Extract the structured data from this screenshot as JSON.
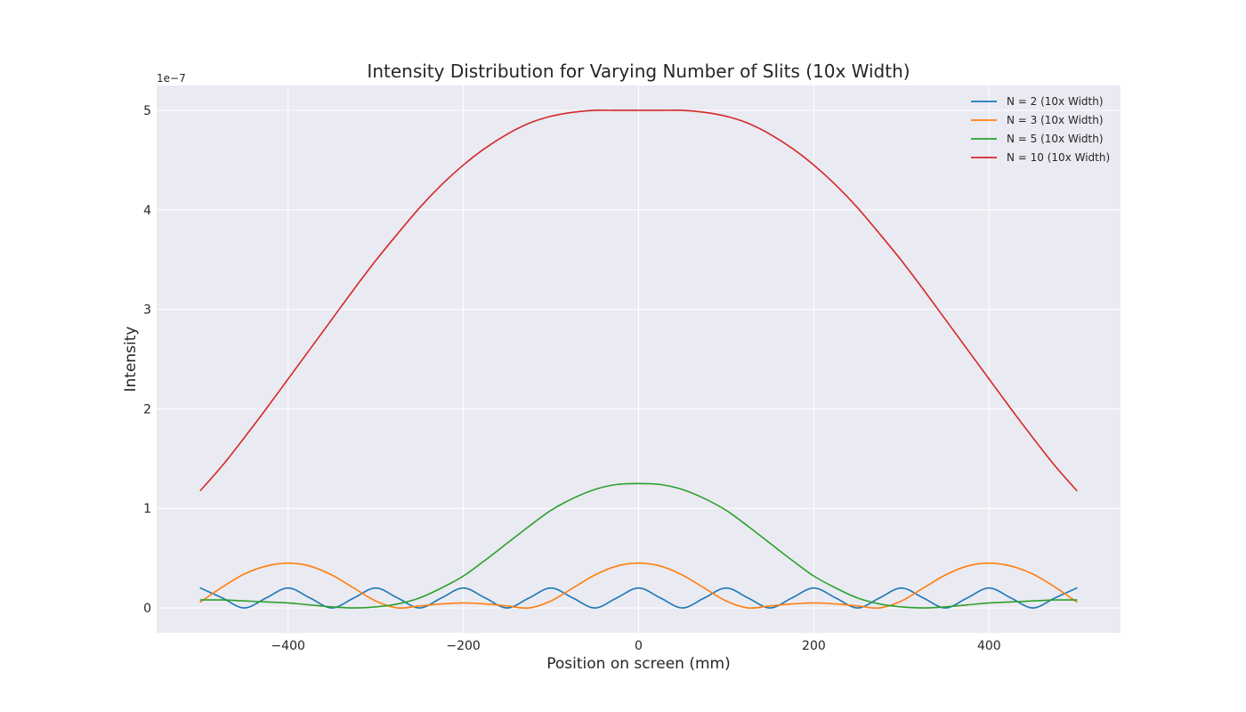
{
  "chart_data": {
    "type": "line",
    "title": "Intensity Distribution for Varying Number of Slits (10x Width)",
    "xlabel": "Position on screen (mm)",
    "ylabel": "Intensity",
    "y_offset_label": "1e−7",
    "xlim": [
      -550,
      550
    ],
    "ylim": [
      -0.25,
      5.25
    ],
    "x_ticks": [
      -400,
      -200,
      0,
      200,
      400
    ],
    "x_tick_labels": [
      "−400",
      "−200",
      "0",
      "200",
      "400"
    ],
    "y_ticks": [
      0,
      1,
      2,
      3,
      4,
      5
    ],
    "y_tick_labels": [
      "0",
      "1",
      "2",
      "3",
      "4",
      "5"
    ],
    "grid": true,
    "legend_position": "top-right",
    "x_range": [
      -500,
      500
    ],
    "series": [
      {
        "name": "N = 2 (10x Width)",
        "color": "#1f77b4",
        "x": [
          -500,
          -475,
          -450,
          -425,
          -400,
          -375,
          -350,
          -325,
          -300,
          -275,
          -250,
          -225,
          -200,
          -175,
          -150,
          -125,
          -100,
          -75,
          -50,
          -25,
          0,
          25,
          50,
          75,
          100,
          125,
          150,
          175,
          200,
          225,
          250,
          275,
          300,
          325,
          350,
          375,
          400,
          425,
          450,
          475,
          500
        ],
        "y": [
          0.2,
          0.1,
          0.0,
          0.1,
          0.2,
          0.1,
          0.0,
          0.1,
          0.2,
          0.1,
          0.0,
          0.1,
          0.2,
          0.1,
          0.0,
          0.1,
          0.2,
          0.1,
          0.0,
          0.1,
          0.2,
          0.1,
          0.0,
          0.1,
          0.2,
          0.1,
          0.0,
          0.1,
          0.2,
          0.1,
          0.0,
          0.1,
          0.2,
          0.1,
          0.0,
          0.1,
          0.2,
          0.1,
          0.0,
          0.1,
          0.2
        ]
      },
      {
        "name": "N = 3 (10x Width)",
        "color": "#ff7f0e",
        "x": [
          -500,
          -475,
          -450,
          -425,
          -400,
          -375,
          -350,
          -325,
          -300,
          -275,
          -250,
          -225,
          -200,
          -175,
          -150,
          -125,
          -100,
          -75,
          -50,
          -25,
          0,
          25,
          50,
          75,
          100,
          125,
          150,
          175,
          200,
          225,
          250,
          275,
          300,
          325,
          350,
          375,
          400,
          425,
          450,
          475,
          500
        ],
        "y": [
          0.06,
          0.21,
          0.34,
          0.42,
          0.45,
          0.42,
          0.33,
          0.2,
          0.07,
          0.0,
          0.02,
          0.04,
          0.05,
          0.04,
          0.02,
          0.0,
          0.07,
          0.2,
          0.33,
          0.42,
          0.45,
          0.42,
          0.33,
          0.2,
          0.07,
          0.0,
          0.02,
          0.04,
          0.05,
          0.04,
          0.02,
          0.0,
          0.07,
          0.2,
          0.33,
          0.42,
          0.45,
          0.42,
          0.34,
          0.21,
          0.06
        ]
      },
      {
        "name": "N = 5 (10x Width)",
        "color": "#2ca02c",
        "x": [
          -500,
          -475,
          -450,
          -425,
          -400,
          -375,
          -350,
          -325,
          -300,
          -275,
          -250,
          -225,
          -200,
          -175,
          -150,
          -125,
          -100,
          -75,
          -50,
          -25,
          0,
          25,
          50,
          75,
          100,
          125,
          150,
          175,
          200,
          225,
          250,
          275,
          300,
          325,
          350,
          375,
          400,
          425,
          450,
          475,
          500
        ],
        "y": [
          0.08,
          0.08,
          0.07,
          0.06,
          0.05,
          0.03,
          0.01,
          0.0,
          0.01,
          0.04,
          0.1,
          0.2,
          0.32,
          0.48,
          0.65,
          0.82,
          0.98,
          1.1,
          1.19,
          1.24,
          1.25,
          1.24,
          1.19,
          1.1,
          0.98,
          0.82,
          0.65,
          0.48,
          0.32,
          0.2,
          0.1,
          0.04,
          0.01,
          0.0,
          0.01,
          0.03,
          0.05,
          0.06,
          0.07,
          0.08,
          0.08
        ]
      },
      {
        "name": "N = 10 (10x Width)",
        "color": "#d62728",
        "x": [
          -500,
          -475,
          -450,
          -425,
          -400,
          -375,
          -350,
          -325,
          -300,
          -275,
          -250,
          -225,
          -200,
          -175,
          -150,
          -125,
          -100,
          -75,
          -50,
          -25,
          0,
          25,
          50,
          75,
          100,
          125,
          150,
          175,
          200,
          225,
          250,
          275,
          300,
          325,
          350,
          375,
          400,
          425,
          450,
          475,
          500
        ],
        "y": [
          1.18,
          1.43,
          1.71,
          2.0,
          2.3,
          2.6,
          2.9,
          3.2,
          3.49,
          3.76,
          4.02,
          4.25,
          4.45,
          4.62,
          4.76,
          4.87,
          4.94,
          4.98,
          5.0,
          5.0,
          5.0,
          5.0,
          5.0,
          4.98,
          4.94,
          4.87,
          4.76,
          4.62,
          4.45,
          4.25,
          4.02,
          3.76,
          3.49,
          3.2,
          2.9,
          2.6,
          2.3,
          2.0,
          1.71,
          1.43,
          1.18
        ]
      }
    ]
  }
}
